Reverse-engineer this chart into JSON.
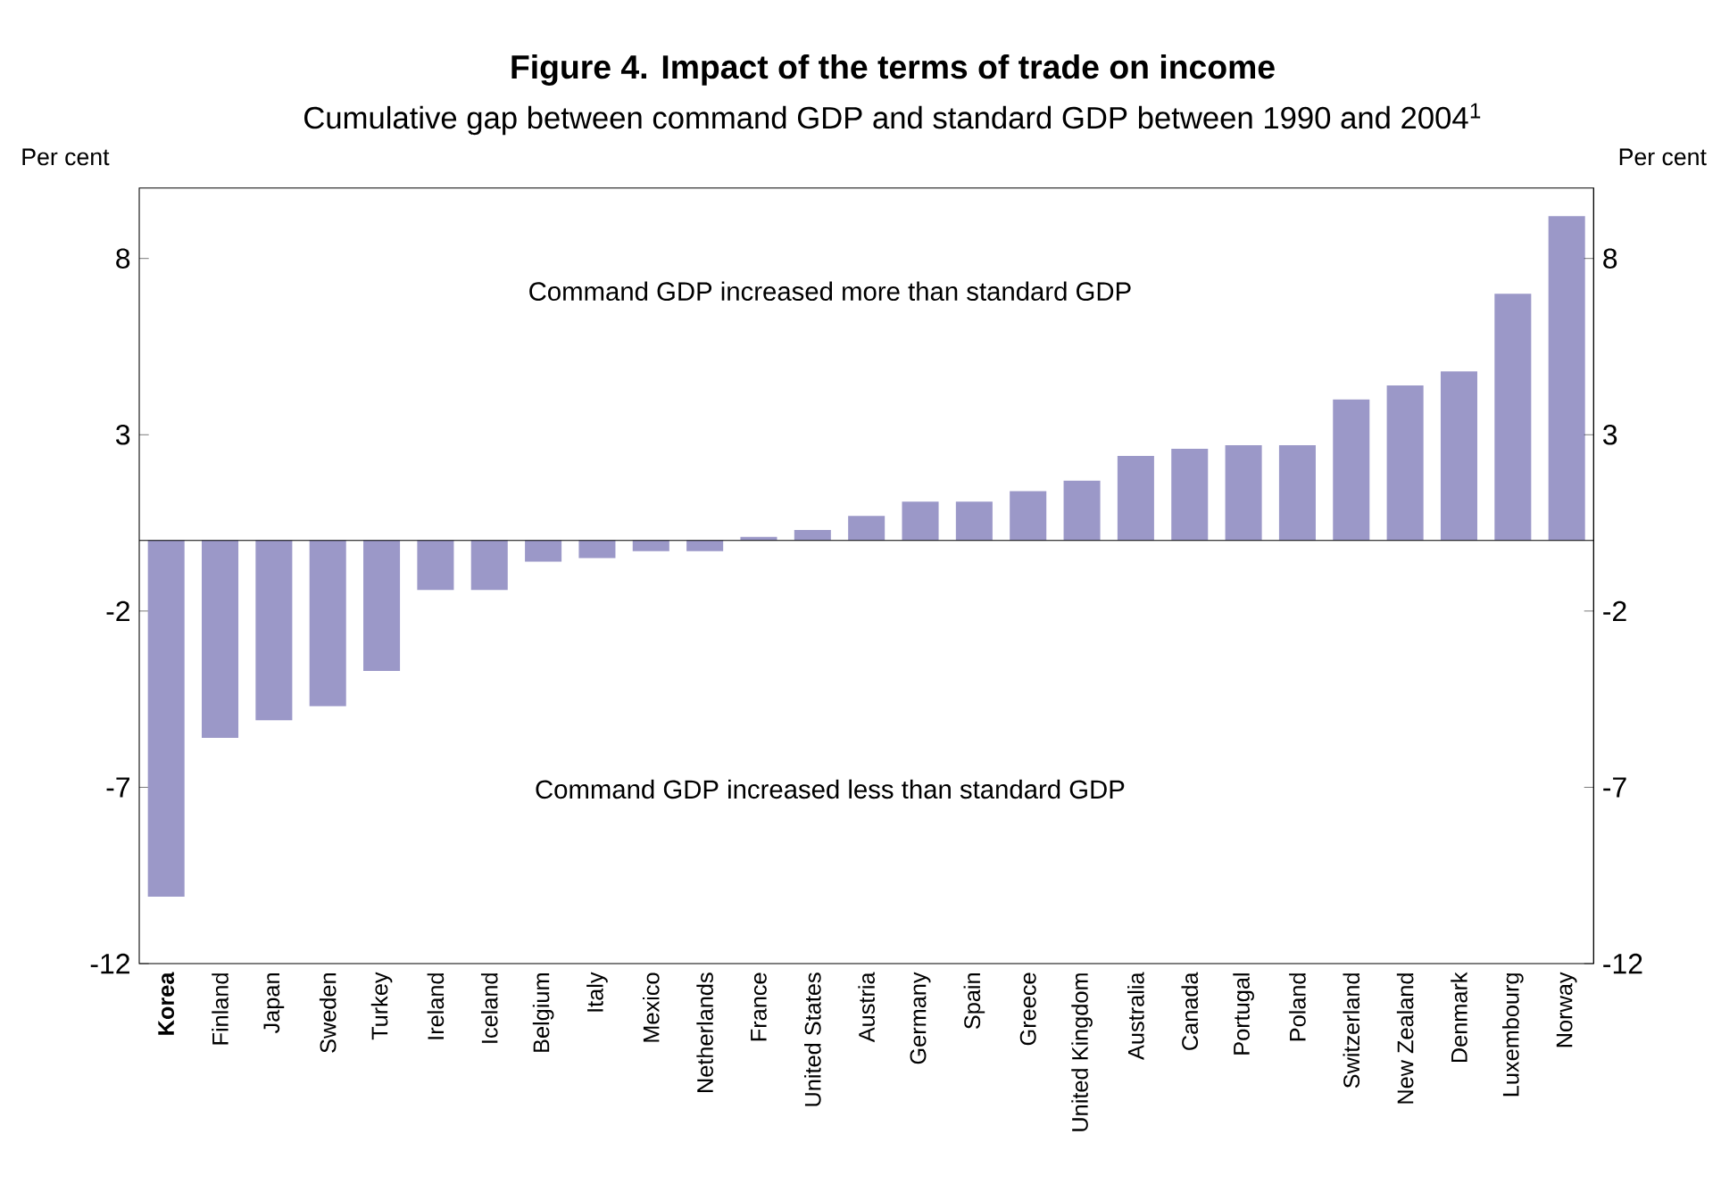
{
  "chart_data": {
    "type": "bar",
    "title": "**Figure 4. Impact of the terms of trade on income**",
    "subtitle": "Cumulative gap between command GDP and standard GDP between 1990 and 2004$^{1}$",
    "ylabel": "Per cent",
    "y2label": "Per cent",
    "annotations": [
      "Command GDP increased more than standard GDP",
      "Command GDP increased less than standard GDP"
    ],
    "categories": [
      "**Korea**",
      "Finland",
      "Japan",
      "Sweden",
      "Turkey",
      "Ireland",
      "Iceland",
      "Belgium",
      "Italy",
      "Mexico",
      "Netherlands",
      "France",
      "United States",
      "Austria",
      "Germany",
      "Spain",
      "Greece",
      "United Kingdom",
      "Australia",
      "Canada",
      "Portugal",
      "Poland",
      "Switzerland",
      "New Zealand",
      "Denmark",
      "Luxembourg",
      "Norway"
    ],
    "values": [
      -10.1,
      -5.6,
      -5.1,
      -4.7,
      -3.7,
      -1.4,
      -1.4,
      -0.6,
      -0.5,
      -0.3,
      -0.3,
      0.1,
      0.3,
      0.7,
      1.1,
      1.1,
      1.4,
      1.7,
      2.4,
      2.6,
      2.7,
      2.7,
      4.0,
      4.4,
      4.8,
      7.0,
      9.2
    ],
    "color": "#9b98c8",
    "ylim": [
      -12,
      10
    ],
    "yticks": [
      -12,
      -7,
      -2,
      3,
      8
    ],
    "y2lim": [
      -12,
      10
    ],
    "y2ticks": [
      -12,
      -7,
      -2,
      3,
      8
    ]
  }
}
